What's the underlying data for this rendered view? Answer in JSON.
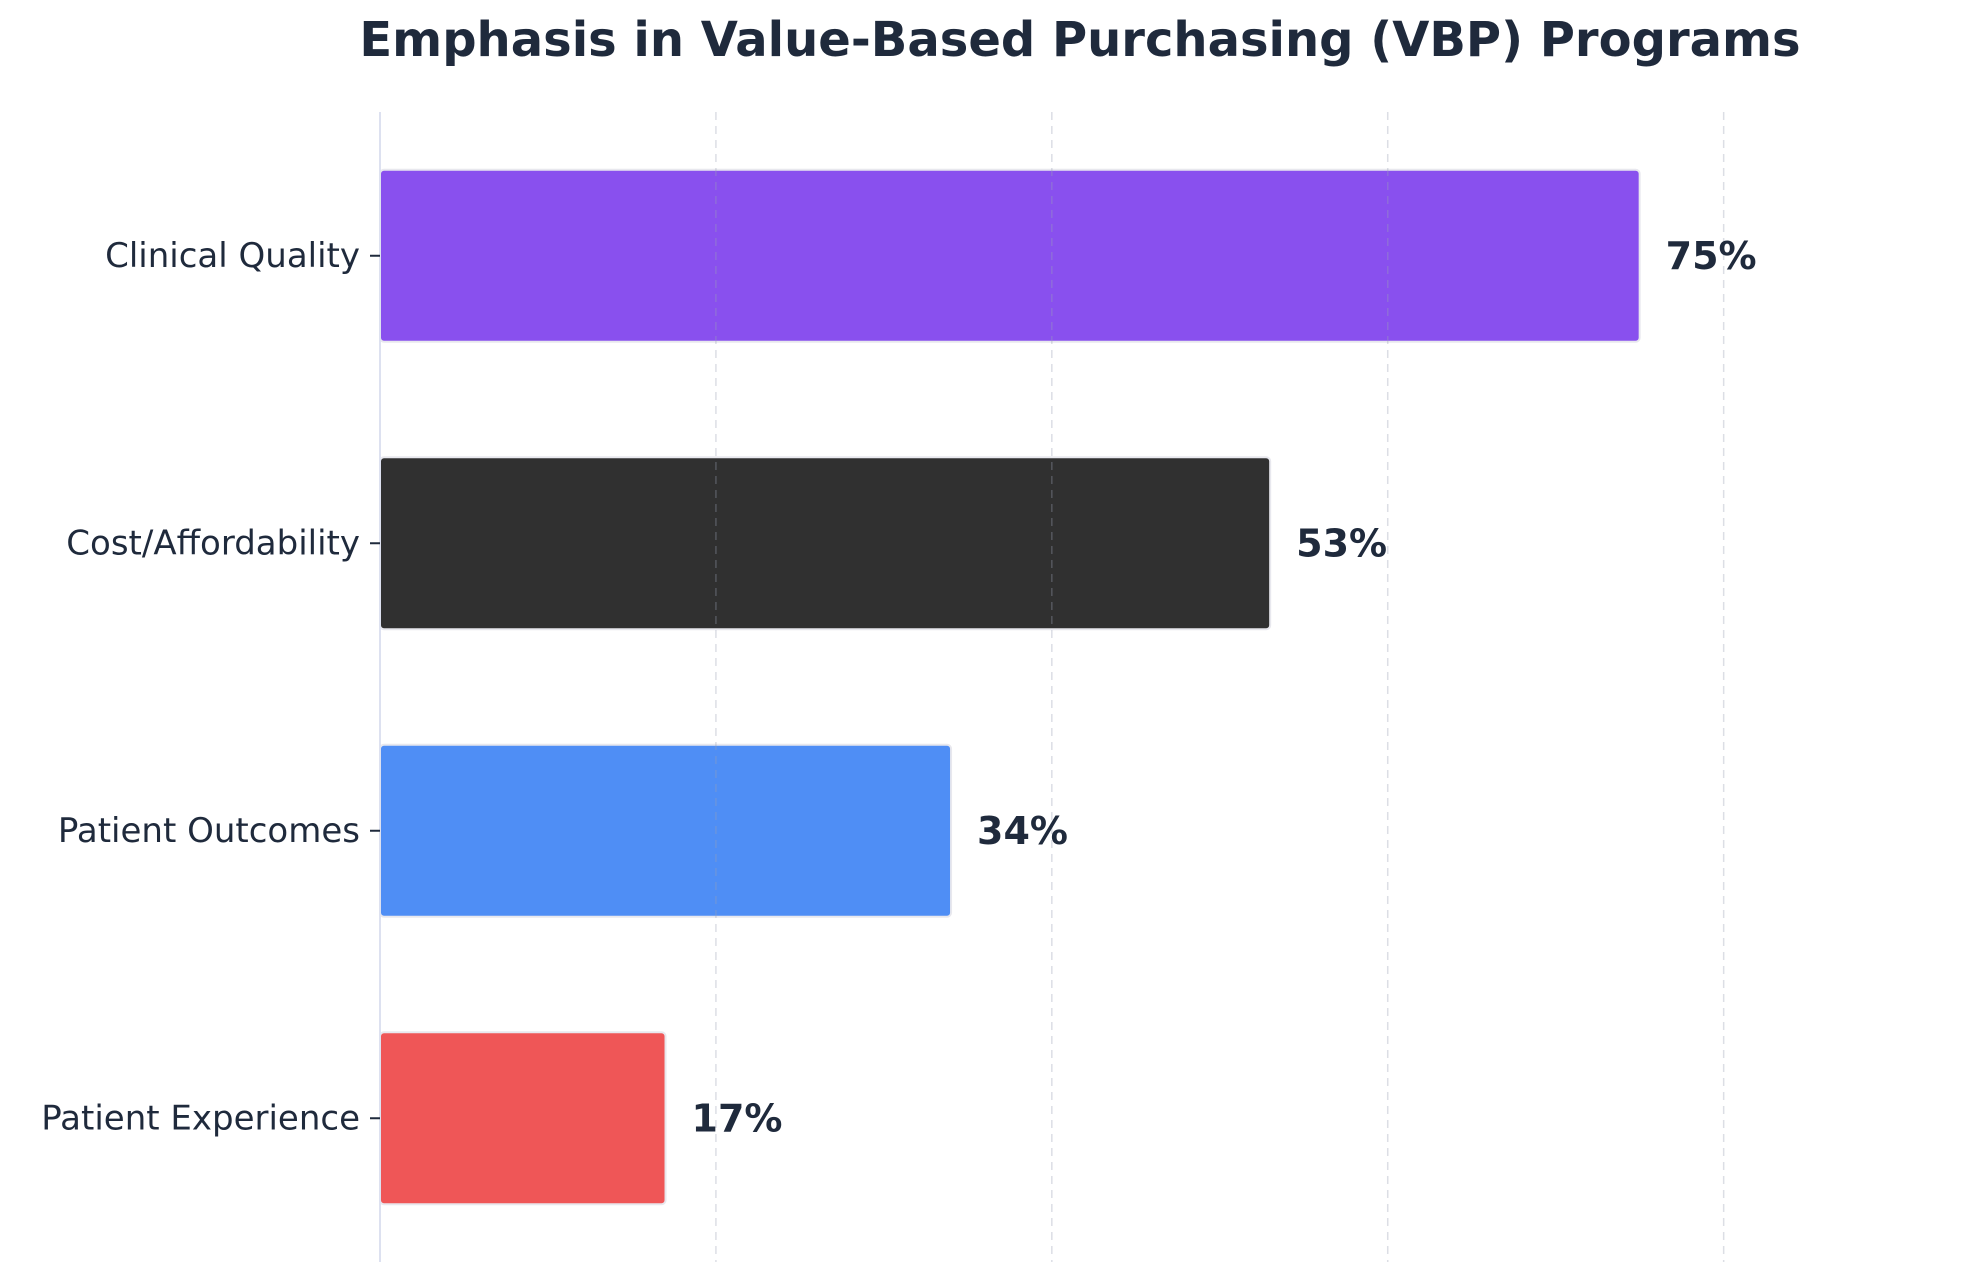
{
  "chart_data": {
    "type": "bar",
    "orientation": "horizontal",
    "title": "Emphasis in Value-Based Purchasing (VBP) Programs",
    "xlabel": "",
    "ylabel": "",
    "categories": [
      "Clinical Quality",
      "Cost/Affordability",
      "Patient Outcomes",
      "Patient Experience"
    ],
    "values": [
      75,
      53,
      34,
      17
    ],
    "value_labels": [
      "75%",
      "53%",
      "34%",
      "17%"
    ],
    "colors": [
      "#8950ee",
      "#303030",
      "#4f8ef5",
      "#ef5657"
    ],
    "xlim": [
      0,
      93
    ],
    "x_gridlines": [
      20,
      40,
      60,
      80
    ],
    "grid": true,
    "legend": "none"
  }
}
